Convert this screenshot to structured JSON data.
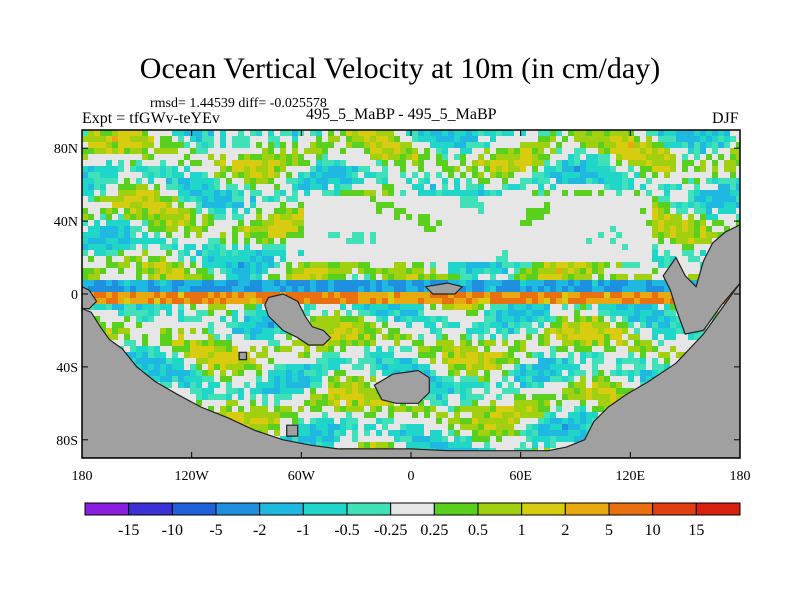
{
  "chart_data": {
    "type": "heatmap",
    "title": "Ocean Vertical Velocity at 10m (in cm/day)",
    "stats_line": "rmsd= 1.44539 diff= -0.025578",
    "left_label": "Expt = tfGWv-teYEv",
    "center_label": "495_5_MaBP - 495_5_MaBP",
    "right_label": "DJF",
    "rmsd": 1.44539,
    "diff": -0.025578,
    "x_axis": {
      "range": [
        -180,
        180
      ],
      "ticks": [
        -180,
        -120,
        -60,
        0,
        60,
        120,
        180
      ],
      "tick_labels": [
        "180",
        "120W",
        "60W",
        "0",
        "60E",
        "120E",
        "180"
      ]
    },
    "y_axis": {
      "range": [
        -90,
        90
      ],
      "ticks": [
        80,
        40,
        0,
        -40,
        -80
      ],
      "tick_labels": [
        "80N",
        "40N",
        "0",
        "40S",
        "80S"
      ]
    },
    "colorbar": {
      "levels": [
        -15,
        -10,
        -5,
        -2,
        -1,
        -0.5,
        -0.25,
        0.25,
        0.5,
        1,
        2,
        5,
        10,
        15
      ],
      "level_labels": [
        "-15",
        "-10",
        "-5",
        "-2",
        "-1",
        "-0.5",
        "-0.25",
        "0.25",
        "0.5",
        "1",
        "2",
        "5",
        "10",
        "15"
      ],
      "colors": [
        "#8a1ee0",
        "#3b2fd6",
        "#1f5fd8",
        "#1f8fe0",
        "#1fb8e0",
        "#1fd6c8",
        "#40e0b8",
        "#e6e6e6",
        "#5ad01e",
        "#a0d010",
        "#d8cc10",
        "#e8a810",
        "#e87010",
        "#e04010",
        "#d82010"
      ]
    },
    "land_color": "#a0a0a0",
    "ocean_base_color": "#e6e6e6"
  }
}
